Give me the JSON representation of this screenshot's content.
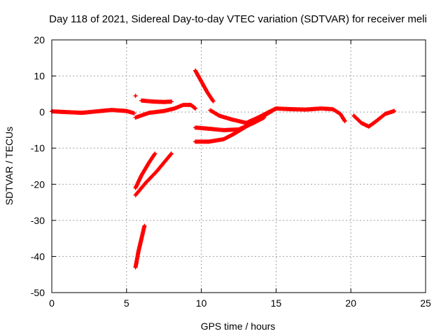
{
  "chart_data": {
    "type": "scatter",
    "title": "Day 118 of 2021, Sidereal Day-to-day VTEC variation (SDTVAR) for receiver meli",
    "xlabel": "GPS time / hours",
    "ylabel": "SDTVAR / TECUs",
    "xlim": [
      0,
      25
    ],
    "ylim": [
      -50,
      20
    ],
    "xticks": [
      0,
      5,
      10,
      15,
      20,
      25
    ],
    "yticks": [
      -50,
      -40,
      -30,
      -20,
      -10,
      0,
      10,
      20
    ],
    "grid": true,
    "marker": "+",
    "series": [
      {
        "name": "SDTVAR",
        "color": "#ff0000",
        "tracks": [
          [
            [
              0.0,
              0.2
            ],
            [
              1.0,
              0.0
            ],
            [
              2.0,
              -0.2
            ],
            [
              3.0,
              0.2
            ],
            [
              4.0,
              0.6
            ],
            [
              5.0,
              0.3
            ],
            [
              5.5,
              -0.3
            ]
          ],
          [
            [
              5.6,
              -1.5
            ],
            [
              6.5,
              -0.2
            ],
            [
              7.5,
              0.3
            ],
            [
              8.2,
              1.0
            ],
            [
              8.8,
              2.0
            ],
            [
              9.3,
              2.0
            ],
            [
              9.6,
              1.0
            ]
          ],
          [
            [
              6.0,
              3.2
            ],
            [
              6.8,
              2.9
            ],
            [
              7.5,
              2.8
            ],
            [
              8.0,
              2.9
            ]
          ],
          [
            [
              5.6,
              4.5
            ]
          ],
          [
            [
              9.6,
              11.5
            ],
            [
              10.0,
              8.5
            ],
            [
              10.4,
              5.5
            ],
            [
              10.8,
              3.0
            ]
          ],
          [
            [
              10.6,
              0.5
            ],
            [
              11.2,
              -1.0
            ],
            [
              12.0,
              -2.0
            ],
            [
              13.0,
              -3.0
            ],
            [
              13.8,
              -1.5
            ],
            [
              14.5,
              0.0
            ],
            [
              15.0,
              1.0
            ]
          ],
          [
            [
              9.6,
              -4.3
            ],
            [
              10.5,
              -4.6
            ],
            [
              11.5,
              -5.0
            ],
            [
              12.5,
              -4.8
            ],
            [
              13.5,
              -3.0
            ],
            [
              14.2,
              -1.5
            ]
          ],
          [
            [
              9.6,
              -8.2
            ],
            [
              10.5,
              -8.2
            ],
            [
              11.5,
              -7.5
            ],
            [
              12.2,
              -6.0
            ],
            [
              13.0,
              -4.0
            ],
            [
              14.0,
              -1.5
            ],
            [
              15.0,
              1.0
            ]
          ],
          [
            [
              15.0,
              1.0
            ],
            [
              16.0,
              0.8
            ],
            [
              17.0,
              0.7
            ],
            [
              18.0,
              1.0
            ],
            [
              18.8,
              0.8
            ],
            [
              19.3,
              -0.5
            ],
            [
              19.6,
              -2.5
            ]
          ],
          [
            [
              20.2,
              -1.0
            ],
            [
              20.7,
              -3.0
            ],
            [
              21.2,
              -4.0
            ],
            [
              21.7,
              -2.5
            ],
            [
              22.3,
              -0.5
            ],
            [
              22.9,
              0.3
            ]
          ],
          [
            [
              5.6,
              -21.0
            ],
            [
              6.0,
              -17.5
            ],
            [
              6.5,
              -14.0
            ],
            [
              6.9,
              -11.5
            ]
          ],
          [
            [
              5.6,
              -23.0
            ],
            [
              6.3,
              -19.5
            ],
            [
              7.0,
              -16.5
            ],
            [
              7.5,
              -14.0
            ],
            [
              8.0,
              -11.5
            ]
          ],
          [
            [
              5.6,
              -43.0
            ],
            [
              5.8,
              -38.5
            ],
            [
              6.0,
              -35.0
            ],
            [
              6.2,
              -31.5
            ]
          ]
        ]
      }
    ]
  }
}
